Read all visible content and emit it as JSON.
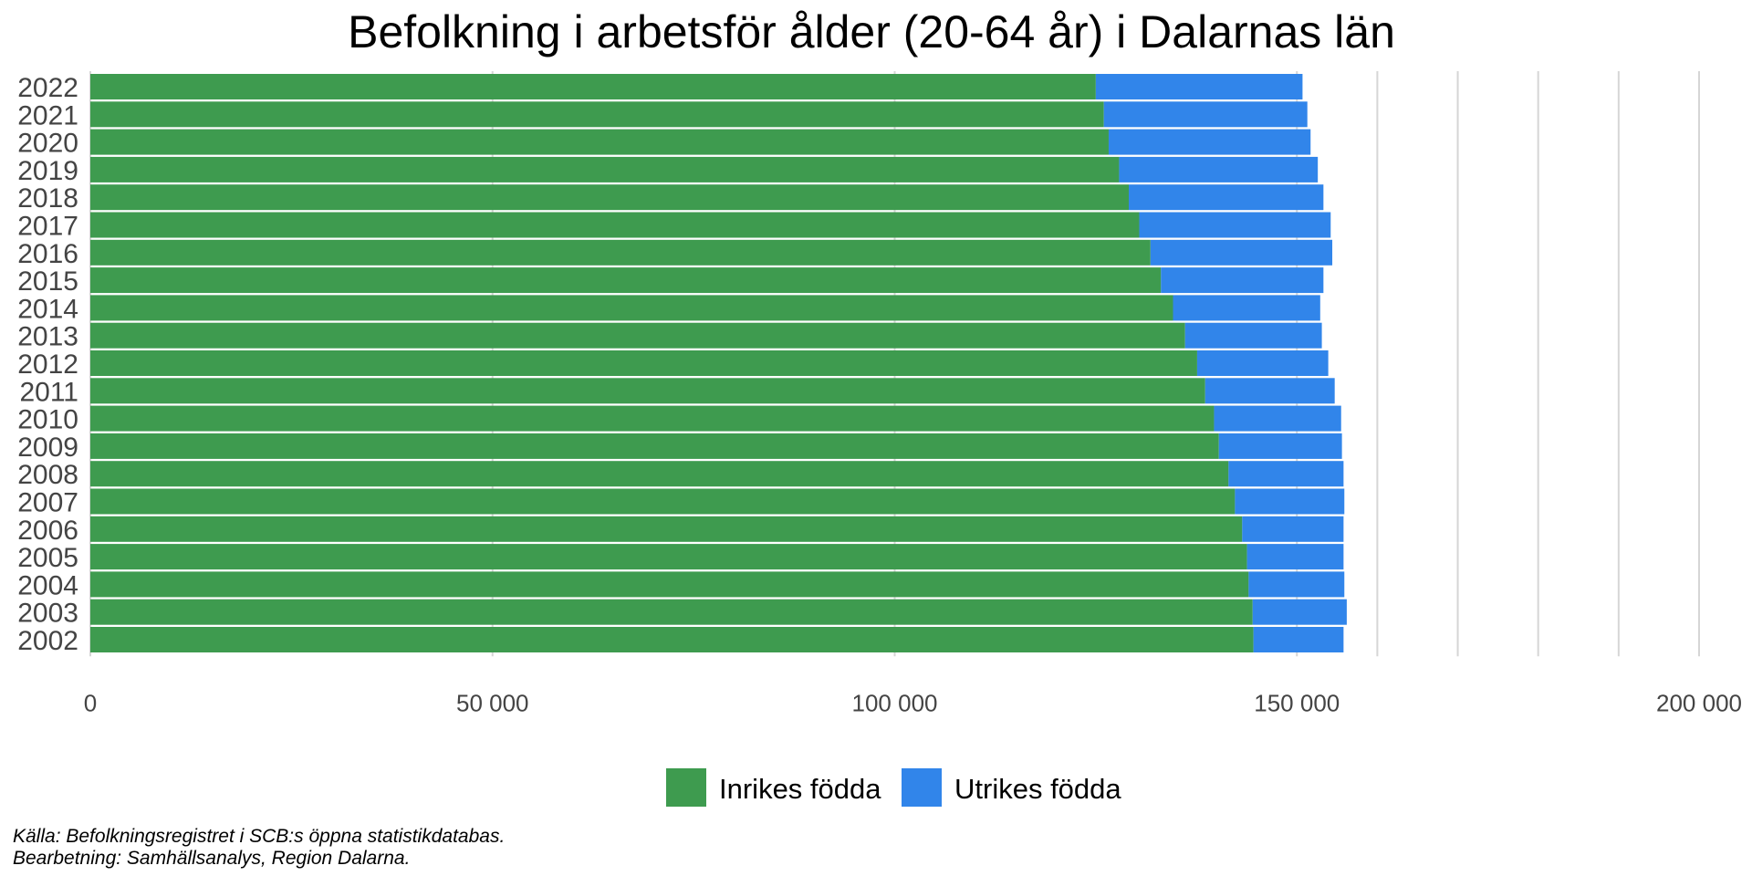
{
  "chart_data": {
    "type": "bar",
    "orientation": "horizontal",
    "stacked": true,
    "title": "Befolkning i arbetsför ålder (20-64 år) i Dalarnas län",
    "categories": [
      "2022",
      "2021",
      "2020",
      "2019",
      "2018",
      "2017",
      "2016",
      "2015",
      "2014",
      "2013",
      "2012",
      "2011",
      "2010",
      "2009",
      "2008",
      "2007",
      "2006",
      "2005",
      "2004",
      "2003",
      "2002"
    ],
    "series": [
      {
        "name": "Inrikes födda",
        "color": "#3e9b4f",
        "values": [
          125000,
          126000,
          126600,
          127900,
          129100,
          130400,
          131800,
          133100,
          134600,
          136100,
          137600,
          138600,
          139700,
          140300,
          141500,
          142300,
          143200,
          143800,
          144000,
          144500,
          144600
        ]
      },
      {
        "name": "Utrikes födda",
        "color": "#3185ea",
        "values": [
          25700,
          25300,
          25100,
          24700,
          24200,
          23800,
          22600,
          20200,
          18300,
          17000,
          16300,
          16100,
          15800,
          15300,
          14300,
          13600,
          12600,
          12000,
          11900,
          11700,
          11200
        ]
      }
    ],
    "xlim": [
      0,
      200000
    ],
    "xticks": [
      0,
      50000,
      100000,
      150000,
      200000
    ],
    "xtick_labels": [
      "0",
      "50 000",
      "100 000",
      "150 000",
      "200 000"
    ],
    "minor_gridlines": [
      160000,
      170000,
      180000,
      190000
    ],
    "legend_position": "bottom"
  },
  "caption": {
    "source": "Källa: Befolkningsregistret i SCB:s öppna statistikdatabas.",
    "processing": "Bearbetning: Samhällsanalys, Region Dalarna."
  }
}
